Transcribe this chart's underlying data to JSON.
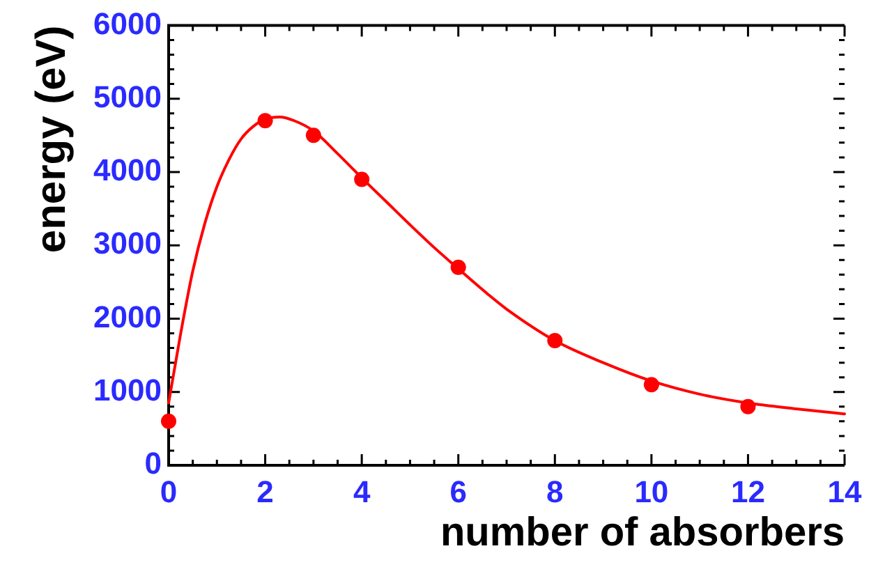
{
  "chart_data": {
    "type": "scatter",
    "xlabel": "number of absorbers",
    "ylabel": "energy (eV)",
    "xlim": [
      0,
      14
    ],
    "ylim": [
      0,
      6000
    ],
    "xticks": [
      0,
      {
        "value": 0.5,
        "label": null
      },
      {
        "value": 1,
        "label": null
      },
      {
        "value": 1.5,
        "label": null
      },
      2,
      {
        "value": 2.5,
        "label": null
      },
      {
        "value": 3,
        "label": null
      },
      {
        "value": 3.5,
        "label": null
      },
      4,
      {
        "value": 4.5,
        "label": null
      },
      {
        "value": 5,
        "label": null
      },
      {
        "value": 5.5,
        "label": null
      },
      6,
      {
        "value": 6.5,
        "label": null
      },
      {
        "value": 7,
        "label": null
      },
      {
        "value": 7.5,
        "label": null
      },
      8,
      {
        "value": 8.5,
        "label": null
      },
      {
        "value": 9,
        "label": null
      },
      {
        "value": 9.5,
        "label": null
      },
      10,
      {
        "value": 10.5,
        "label": null
      },
      {
        "value": 11,
        "label": null
      },
      {
        "value": 11.5,
        "label": null
      },
      12,
      {
        "value": 12.5,
        "label": null
      },
      {
        "value": 13,
        "label": null
      },
      {
        "value": 13.5,
        "label": null
      },
      14
    ],
    "yticks": [
      0,
      {
        "value": 200,
        "label": null
      },
      {
        "value": 400,
        "label": null
      },
      {
        "value": 600,
        "label": null
      },
      {
        "value": 800,
        "label": null
      },
      1000,
      {
        "value": 1200,
        "label": null
      },
      {
        "value": 1400,
        "label": null
      },
      {
        "value": 1600,
        "label": null
      },
      {
        "value": 1800,
        "label": null
      },
      2000,
      {
        "value": 2200,
        "label": null
      },
      {
        "value": 2400,
        "label": null
      },
      {
        "value": 2600,
        "label": null
      },
      {
        "value": 2800,
        "label": null
      },
      3000,
      {
        "value": 3200,
        "label": null
      },
      {
        "value": 3400,
        "label": null
      },
      {
        "value": 3600,
        "label": null
      },
      {
        "value": 3800,
        "label": null
      },
      4000,
      {
        "value": 4200,
        "label": null
      },
      {
        "value": 4400,
        "label": null
      },
      {
        "value": 4600,
        "label": null
      },
      {
        "value": 4800,
        "label": null
      },
      5000,
      {
        "value": 5200,
        "label": null
      },
      {
        "value": 5400,
        "label": null
      },
      {
        "value": 5600,
        "label": null
      },
      {
        "value": 5800,
        "label": null
      },
      6000
    ],
    "grid": false,
    "legend": false,
    "series": [
      {
        "type": "scatter",
        "color": "#ff0000",
        "marker": "circle",
        "x": [
          0,
          2,
          3,
          4,
          6,
          8,
          10,
          12
        ],
        "values": [
          600,
          4700,
          4500,
          3900,
          2700,
          1700,
          1100,
          800
        ]
      },
      {
        "type": "line",
        "color": "#ff0000",
        "marker": "none",
        "line_style": "solid",
        "x": [
          0,
          0.25,
          0.5,
          0.75,
          1,
          1.25,
          1.5,
          1.75,
          2,
          2.3,
          2.6,
          3,
          3.5,
          4,
          4.5,
          5,
          5.5,
          6,
          6.6,
          7,
          8,
          9,
          10,
          11,
          12,
          13,
          14
        ],
        "values": [
          850,
          1800,
          2650,
          3300,
          3800,
          4170,
          4450,
          4620,
          4720,
          4750,
          4700,
          4560,
          4250,
          3920,
          3600,
          3280,
          2970,
          2680,
          2340,
          2130,
          1700,
          1400,
          1150,
          970,
          850,
          770,
          700
        ]
      }
    ]
  }
}
